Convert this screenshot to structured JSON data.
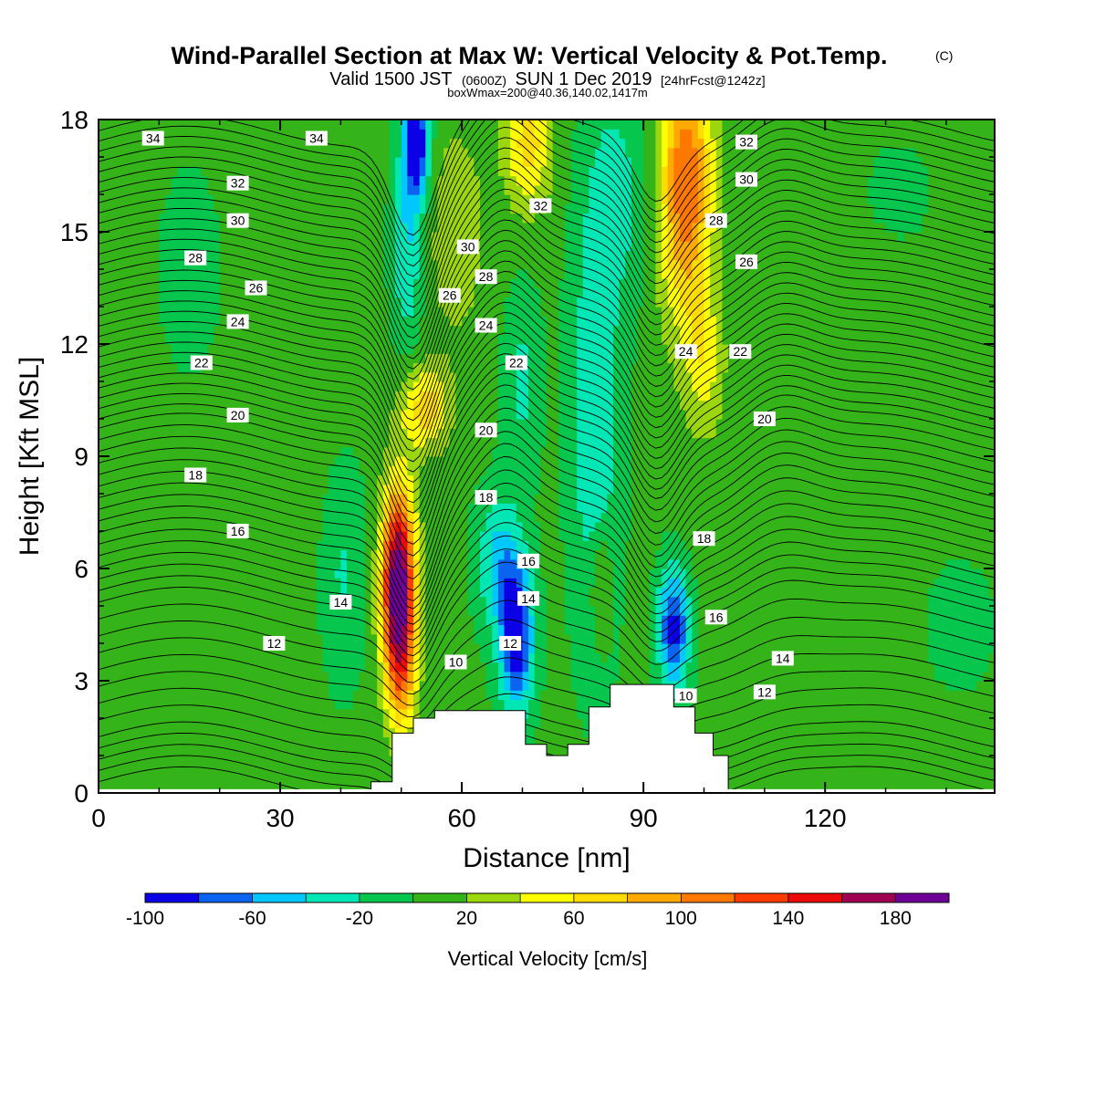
{
  "title": {
    "main": "Wind-Parallel Section at Max W: Vertical Velocity & Pot.Temp.",
    "copyright": "(C)",
    "valid_prefix": "Valid 1500 JST",
    "valid_z": "(0600Z)",
    "valid_date": "SUN 1 Dec 2019",
    "forecast": "[24hrFcst@1242z]",
    "box": "boxWmax=200@40.36,140.02,1417m"
  },
  "chart_data": {
    "type": "heatmap",
    "xlabel": "Distance [nm]",
    "ylabel": "Height [Kft MSL]",
    "xlim": [
      0,
      148
    ],
    "ylim": [
      0,
      18
    ],
    "x_ticks": [
      0,
      30,
      60,
      90,
      120
    ],
    "y_ticks": [
      0,
      3,
      6,
      9,
      12,
      15,
      18
    ],
    "colorbar": {
      "title": "Vertical Velocity [cm/s]",
      "bounds": [
        -100,
        -80,
        -60,
        -40,
        -20,
        0,
        20,
        40,
        60,
        80,
        100,
        120,
        140,
        160,
        180,
        200
      ],
      "tick_labels": [
        -100,
        -60,
        -20,
        20,
        60,
        100,
        140,
        180
      ],
      "colors": [
        "#0b00e6",
        "#0a64f0",
        "#00c8ff",
        "#00e6b4",
        "#06c64e",
        "#35b41a",
        "#9bd60e",
        "#ffff00",
        "#ffdc00",
        "#ffaa00",
        "#ff7800",
        "#ff3c00",
        "#eb0a0a",
        "#a00050",
        "#6e0096"
      ]
    },
    "vertical_velocity_features_cm_s": [
      {
        "x": 49,
        "z": 5.5,
        "peak": 200,
        "note": "updraft"
      },
      {
        "x": 97,
        "z": 16.5,
        "peak": 110,
        "note": "updraft"
      },
      {
        "x": 70,
        "z": 17.5,
        "peak": 60,
        "note": "updraft"
      },
      {
        "x": 52,
        "z": 17.2,
        "peak": -100,
        "note": "downdraft"
      },
      {
        "x": 69,
        "z": 3.7,
        "peak": -100,
        "note": "downdraft"
      },
      {
        "x": 95,
        "z": 4.5,
        "peak": -90,
        "note": "downdraft"
      }
    ],
    "terrain_kft": {
      "x": [
        45,
        48.5,
        52,
        55.5,
        70.5,
        74,
        77.5,
        81,
        84.5,
        91.5,
        95,
        98.5,
        101.5,
        104
      ],
      "z": [
        0.3,
        1.6,
        2.0,
        2.2,
        1.3,
        1.0,
        1.3,
        2.3,
        2.9,
        2.9,
        2.3,
        1.6,
        1.0,
        0
      ]
    },
    "potential_temperature_contour_labels": [
      {
        "x": 9,
        "z": 17.5,
        "label": "34"
      },
      {
        "x": 36,
        "z": 17.5,
        "label": "34"
      },
      {
        "x": 23,
        "z": 16.3,
        "label": "32"
      },
      {
        "x": 23,
        "z": 15.3,
        "label": "30"
      },
      {
        "x": 16,
        "z": 14.3,
        "label": "28"
      },
      {
        "x": 26,
        "z": 13.5,
        "label": "26"
      },
      {
        "x": 23,
        "z": 12.6,
        "label": "24"
      },
      {
        "x": 17,
        "z": 11.5,
        "label": "22"
      },
      {
        "x": 23,
        "z": 10.1,
        "label": "20"
      },
      {
        "x": 16,
        "z": 8.5,
        "label": "18"
      },
      {
        "x": 23,
        "z": 7.0,
        "label": "16"
      },
      {
        "x": 40,
        "z": 5.1,
        "label": "14"
      },
      {
        "x": 29,
        "z": 4.0,
        "label": "12"
      },
      {
        "x": 73,
        "z": 15.7,
        "label": "32"
      },
      {
        "x": 61,
        "z": 14.6,
        "label": "30"
      },
      {
        "x": 64,
        "z": 13.8,
        "label": "28"
      },
      {
        "x": 58,
        "z": 13.3,
        "label": "26"
      },
      {
        "x": 64,
        "z": 12.5,
        "label": "24"
      },
      {
        "x": 69,
        "z": 11.5,
        "label": "22"
      },
      {
        "x": 64,
        "z": 9.7,
        "label": "20"
      },
      {
        "x": 64,
        "z": 7.9,
        "label": "18"
      },
      {
        "x": 71,
        "z": 6.2,
        "label": "16"
      },
      {
        "x": 71,
        "z": 5.2,
        "label": "14"
      },
      {
        "x": 68,
        "z": 4.0,
        "label": "12"
      },
      {
        "x": 59,
        "z": 3.5,
        "label": "10"
      },
      {
        "x": 107,
        "z": 17.4,
        "label": "32"
      },
      {
        "x": 107,
        "z": 16.4,
        "label": "30"
      },
      {
        "x": 102,
        "z": 15.3,
        "label": "28"
      },
      {
        "x": 107,
        "z": 14.2,
        "label": "26"
      },
      {
        "x": 97,
        "z": 11.8,
        "label": "24"
      },
      {
        "x": 106,
        "z": 11.8,
        "label": "22"
      },
      {
        "x": 110,
        "z": 10.0,
        "label": "20"
      },
      {
        "x": 100,
        "z": 6.8,
        "label": "18"
      },
      {
        "x": 102,
        "z": 4.7,
        "label": "16"
      },
      {
        "x": 113,
        "z": 3.6,
        "label": "14"
      },
      {
        "x": 110,
        "z": 2.7,
        "label": "12"
      },
      {
        "x": 97,
        "z": 2.6,
        "label": "10"
      }
    ]
  }
}
